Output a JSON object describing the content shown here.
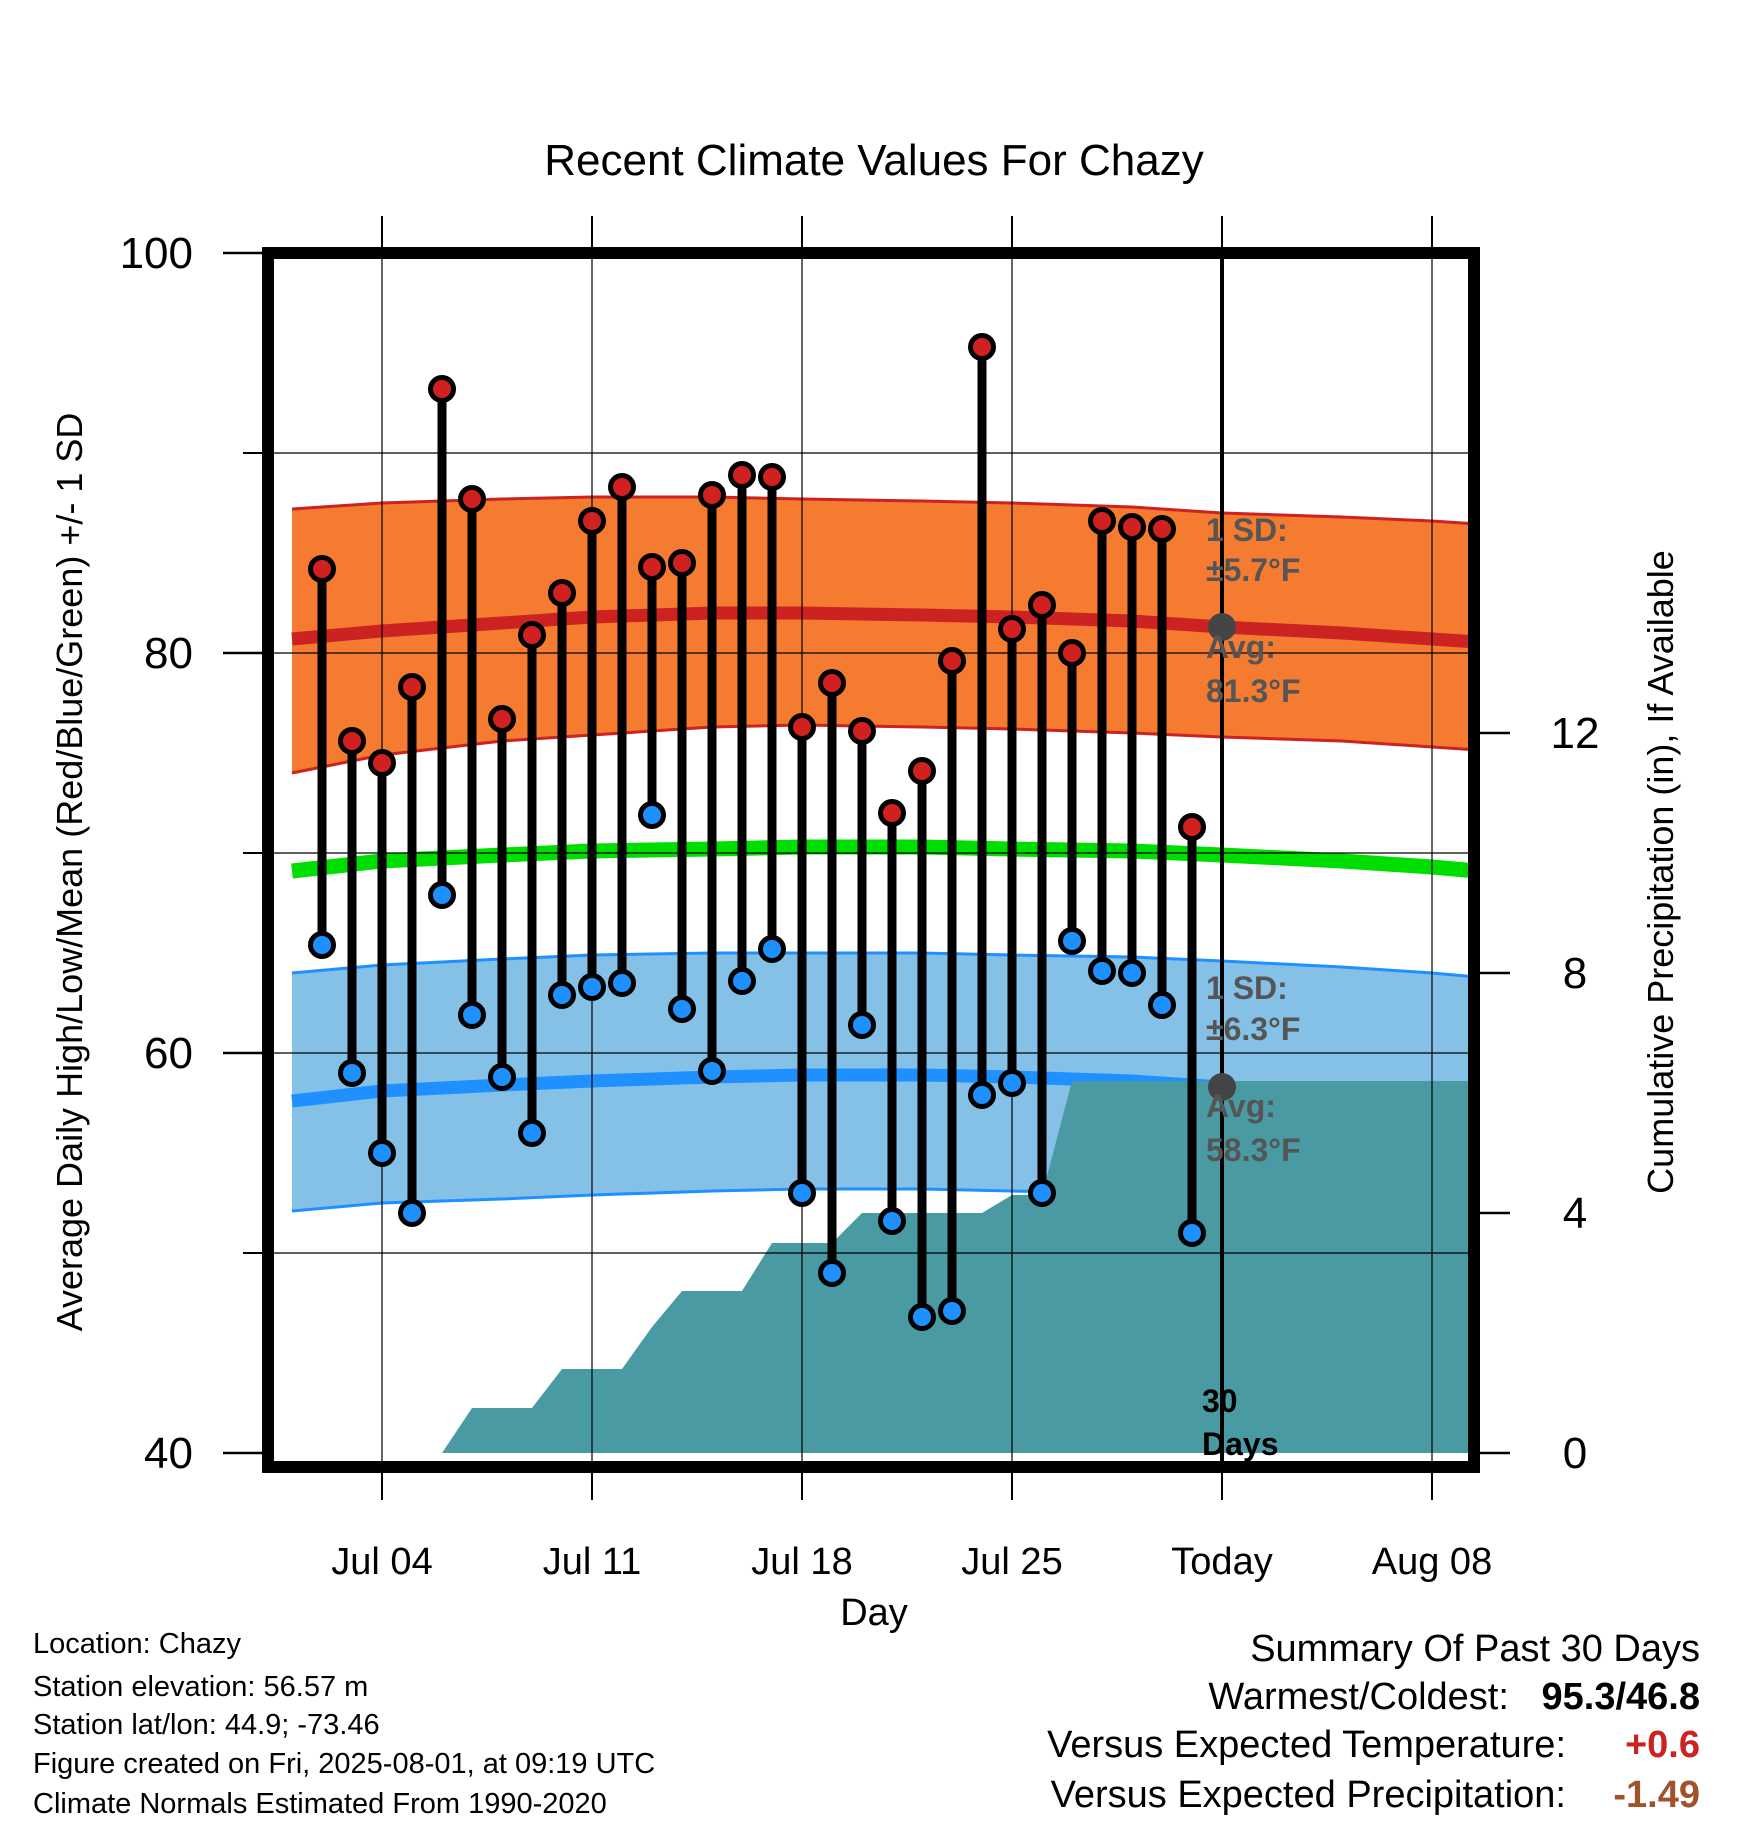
{
  "chart_data": {
    "type": "line",
    "title": "Recent Climate Values For Chazy",
    "xlabel": "Day",
    "ylabel": "Average Daily High/Low/Mean (Red/Blue/Green) +/- 1 SD",
    "y2label": "Cumulative Precipitation (in), If Available",
    "ylim": [
      40,
      100
    ],
    "y_ticks": [
      "100",
      "80",
      "60",
      "40"
    ],
    "y2lim": [
      0,
      20
    ],
    "y2_ticks": [
      "12",
      "8",
      "4",
      "0"
    ],
    "x_tick_labels": [
      "Jul 04",
      "Jul 11",
      "Jul 18",
      "Jul 25",
      "Today",
      "Aug 08"
    ],
    "x_tick_dates": [
      "2025-07-04",
      "2025-07-11",
      "2025-07-18",
      "2025-07-25",
      "2025-08-01",
      "2025-08-08"
    ],
    "today": "2025-08-01",
    "observed": {
      "dates": [
        "2025-07-02",
        "2025-07-03",
        "2025-07-04",
        "2025-07-05",
        "2025-07-06",
        "2025-07-07",
        "2025-07-08",
        "2025-07-09",
        "2025-07-10",
        "2025-07-11",
        "2025-07-12",
        "2025-07-13",
        "2025-07-14",
        "2025-07-15",
        "2025-07-16",
        "2025-07-17",
        "2025-07-18",
        "2025-07-19",
        "2025-07-20",
        "2025-07-21",
        "2025-07-22",
        "2025-07-23",
        "2025-07-24",
        "2025-07-25",
        "2025-07-26",
        "2025-07-27",
        "2025-07-28",
        "2025-07-29",
        "2025-07-30",
        "2025-07-31"
      ],
      "high": [
        84.2,
        75.6,
        74.5,
        78.3,
        93.2,
        87.7,
        76.7,
        80.9,
        83.0,
        86.6,
        88.3,
        84.3,
        84.5,
        87.9,
        88.9,
        88.8,
        76.3,
        78.5,
        76.1,
        72.0,
        74.1,
        79.6,
        95.3,
        81.2,
        82.4,
        80.0,
        86.6,
        86.3,
        86.2,
        71.3
      ],
      "low": [
        65.4,
        59.0,
        55.0,
        52.0,
        67.9,
        61.9,
        58.8,
        56.0,
        62.9,
        63.3,
        63.5,
        71.9,
        62.2,
        59.1,
        63.6,
        65.2,
        53.0,
        49.0,
        61.4,
        51.6,
        46.8,
        47.1,
        57.9,
        58.5,
        53.0,
        65.6,
        64.1,
        64.0,
        62.4,
        51.0
      ]
    },
    "normals": {
      "dates": [
        "2025-07-01",
        "2025-07-04",
        "2025-07-08",
        "2025-07-11",
        "2025-07-15",
        "2025-07-18",
        "2025-07-22",
        "2025-07-25",
        "2025-07-29",
        "2025-08-01",
        "2025-08-05",
        "2025-08-08",
        "2025-08-11"
      ],
      "high_avg": [
        80.7,
        81.1,
        81.5,
        81.8,
        82.0,
        82.0,
        81.9,
        81.8,
        81.6,
        81.3,
        81.0,
        80.7,
        80.4
      ],
      "high_plus_sd": [
        87.2,
        87.5,
        87.7,
        87.8,
        87.8,
        87.7,
        87.6,
        87.5,
        87.3,
        87.0,
        86.8,
        86.6,
        86.3
      ],
      "high_minus_sd": [
        74.0,
        74.9,
        75.6,
        75.9,
        76.3,
        76.4,
        76.3,
        76.2,
        76.0,
        75.8,
        75.6,
        75.3,
        75.0
      ],
      "low_avg": [
        57.6,
        58.1,
        58.4,
        58.6,
        58.8,
        58.9,
        58.9,
        58.8,
        58.6,
        58.3,
        58.0,
        57.7,
        57.3
      ],
      "low_plus_sd": [
        64.0,
        64.4,
        64.7,
        64.9,
        65.0,
        65.0,
        65.0,
        64.9,
        64.8,
        64.6,
        64.3,
        64.0,
        63.6
      ],
      "low_minus_sd": [
        52.1,
        52.5,
        52.7,
        52.9,
        53.1,
        53.2,
        53.2,
        53.1,
        53.0,
        52.8,
        52.5,
        52.2,
        51.8
      ],
      "mean": [
        69.1,
        69.6,
        69.9,
        70.1,
        70.2,
        70.3,
        70.3,
        70.2,
        70.1,
        69.9,
        69.6,
        69.3,
        68.9
      ]
    },
    "precip_cumulative": {
      "dates": [
        "2025-07-01",
        "2025-07-06",
        "2025-07-07",
        "2025-07-09",
        "2025-07-10",
        "2025-07-12",
        "2025-07-13",
        "2025-07-14",
        "2025-07-16",
        "2025-07-17",
        "2025-07-19",
        "2025-07-20",
        "2025-07-24",
        "2025-07-25",
        "2025-07-26",
        "2025-07-27",
        "2025-08-11"
      ],
      "values": [
        0,
        0,
        0.75,
        0.75,
        1.4,
        1.4,
        2.1,
        2.7,
        2.7,
        3.5,
        3.5,
        4.0,
        4.0,
        4.3,
        4.3,
        6.2,
        6.2
      ]
    },
    "annotations": {
      "high_sd_label": "1 SD:",
      "high_sd_value": "±5.7°F",
      "high_avg_label": "Avg:",
      "high_avg_value": "81.3°F",
      "low_sd_label": "1 SD:",
      "low_sd_value": "±6.3°F",
      "low_avg_label": "Avg:",
      "low_avg_value": "58.3°F",
      "days_label_1": "30",
      "days_label_2": "Days"
    },
    "colors": {
      "high_band": "#f47b2f",
      "high_line": "#cc2222",
      "low_band": "#85c1e6",
      "low_line": "#1e90ff",
      "mean_line": "#00dd00",
      "precip": "#4a9aa3",
      "high_dot": "#d02020",
      "low_dot": "#1e90ff",
      "today_dot": "#444444"
    },
    "grid": true
  },
  "info": {
    "location": "Location: Chazy",
    "elevation": "Station elevation: 56.57 m",
    "latlon": "Station lat/lon: 44.9; -73.46",
    "created": "Figure created on Fri, 2025-08-01, at 09:19 UTC",
    "normals": "Climate Normals Estimated From 1990-2020"
  },
  "summary": {
    "title": "Summary Of Past 30 Days",
    "warm_cold_label": "Warmest/Coldest:",
    "warmest": "95.3",
    "sep": "/",
    "coldest": "46.8",
    "temp_label": "Versus Expected Temperature:",
    "temp_value": "+0.6",
    "temp_color": "#cc2222",
    "precip_label": "Versus Expected Precipitation:",
    "precip_value": "-1.49",
    "precip_color": "#a0522d"
  }
}
